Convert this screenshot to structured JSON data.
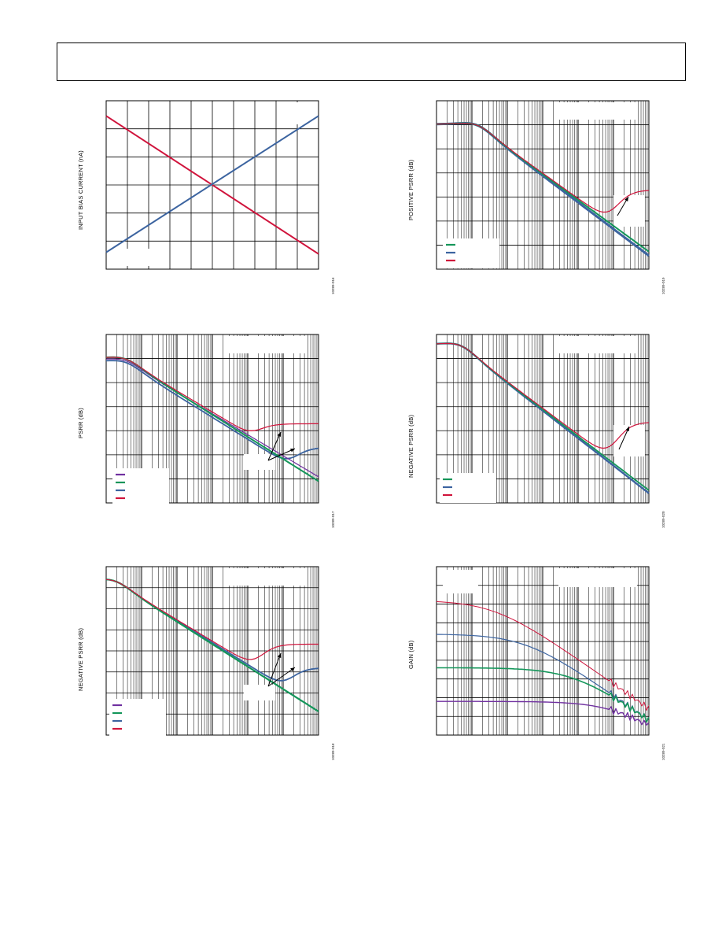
{
  "header": {},
  "figures": [
    {
      "id": "fig-ibias",
      "ylabel": "INPUT BIAS CURRENT (nA)",
      "fig_id": "10289-016"
    },
    {
      "id": "fig-pos-psrr",
      "ylabel": "POSITIVE PSRR (dB)",
      "fig_id": "10289-019"
    },
    {
      "id": "fig-psrr",
      "ylabel": "PSRR (dB)",
      "fig_id": "10289-017"
    },
    {
      "id": "fig-neg-psrr-2",
      "ylabel": "NEGATIVE PSRR (dB)",
      "fig_id": "10289-020"
    },
    {
      "id": "fig-neg-psrr-1",
      "ylabel": "NEGATIVE PSRR (dB)",
      "fig_id": "10289-018"
    },
    {
      "id": "fig-gain",
      "ylabel": "GAIN (dB)",
      "fig_id": "10289-021"
    }
  ],
  "chart_data": [
    {
      "type": "line",
      "ylabel": "INPUT BIAS CURRENT (nA)",
      "grid": true,
      "series": [
        {
          "values": [
            0.91,
            0.09
          ],
          "color": "#d0143c"
        },
        {
          "values": [
            0.1,
            0.91
          ],
          "color": "#3c64a0"
        }
      ]
    },
    {
      "type": "line",
      "ylabel": "POSITIVE PSRR (dB)",
      "grid": true,
      "x_scale": "log",
      "legend_position": "bottom-left",
      "series": [
        {
          "color": "#14965a"
        },
        {
          "color": "#3c64a0"
        },
        {
          "color": "#d0143c"
        }
      ]
    },
    {
      "type": "line",
      "ylabel": "PSRR (dB)",
      "grid": true,
      "x_scale": "log",
      "legend_position": "bottom-left",
      "series": [
        {
          "color": "#7030a0"
        },
        {
          "color": "#14965a"
        },
        {
          "color": "#3c64a0"
        },
        {
          "color": "#d0143c"
        }
      ]
    },
    {
      "type": "line",
      "ylabel": "NEGATIVE PSRR (dB)",
      "grid": true,
      "x_scale": "log",
      "legend_position": "bottom-left",
      "series": [
        {
          "color": "#14965a"
        },
        {
          "color": "#3c64a0"
        },
        {
          "color": "#d0143c"
        }
      ]
    },
    {
      "type": "line",
      "ylabel": "NEGATIVE PSRR (dB)",
      "grid": true,
      "x_scale": "log",
      "legend_position": "bottom-left",
      "series": [
        {
          "color": "#7030a0"
        },
        {
          "color": "#14965a"
        },
        {
          "color": "#3c64a0"
        },
        {
          "color": "#d0143c"
        }
      ]
    },
    {
      "type": "line",
      "ylabel": "GAIN (dB)",
      "grid": true,
      "x_scale": "log",
      "series": [
        {
          "color": "#d0143c"
        },
        {
          "color": "#3c64a0"
        },
        {
          "color": "#14965a"
        },
        {
          "color": "#7030a0"
        }
      ]
    }
  ]
}
